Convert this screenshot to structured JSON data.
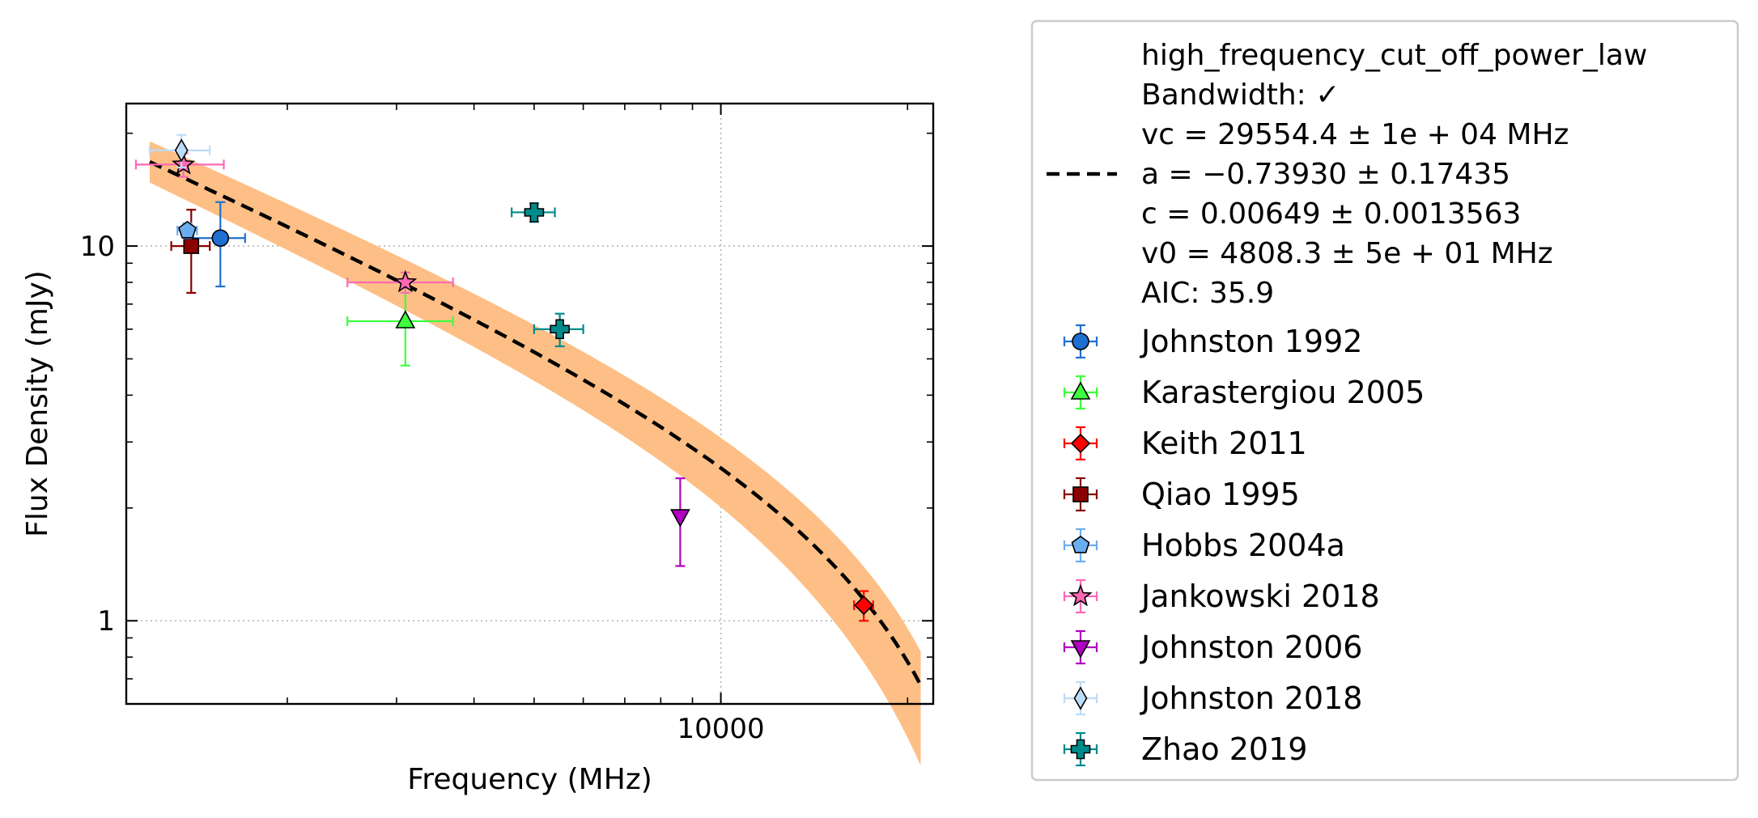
{
  "chart_data": {
    "type": "scatter",
    "title": "",
    "xlabel": "Frequency (MHz)",
    "ylabel": "Flux Density (mJy)",
    "x_scale": "log",
    "y_scale": "log",
    "xlim": [
      1100,
      22000
    ],
    "ylim": [
      0.6,
      24
    ],
    "x_tick_labels": [
      "10000"
    ],
    "y_tick_labels": [
      "1",
      "10"
    ],
    "grid": true,
    "legend_position": "outside-right",
    "fit": {
      "label_lines": [
        "high_frequency_cut_off_power_law",
        "Bandwidth: ✓",
        "vc = 29554.4 ± 1e + 04 MHz",
        "a = −0.73930 ± 0.17435",
        "c = 0.00649 ± 0.0013563",
        "v0 = 4808.3 ± 5e + 01 MHz",
        "AIC: 35.9"
      ],
      "vc": 29554.4,
      "a": -0.7393,
      "c": 0.00649,
      "v0": 4808.3,
      "x_range": [
        1200,
        21000
      ],
      "color": "#000000",
      "band_color": "#fdbf85"
    },
    "series": [
      {
        "name": "Johnston 1992",
        "color": "#1f6fd1",
        "marker": "circle",
        "points": [
          {
            "x": 1560,
            "y": 10.5,
            "xerr": 150,
            "yerr_lo": 2.7,
            "yerr_hi": 2.6
          }
        ]
      },
      {
        "name": "Karastergiou 2005",
        "color": "#3dff3d",
        "marker": "triangle-up",
        "points": [
          {
            "x": 3100,
            "y": 6.3,
            "xerr": 600,
            "yerr_lo": 1.5,
            "yerr_hi": 1.2
          }
        ]
      },
      {
        "name": "Keith 2011",
        "color": "#ff0000",
        "marker": "diamond",
        "points": [
          {
            "x": 17000,
            "y": 1.1,
            "xerr": 600,
            "yerr_lo": 0.1,
            "yerr_hi": 0.1
          }
        ]
      },
      {
        "name": "Qiao 1995",
        "color": "#8b0000",
        "marker": "square",
        "points": [
          {
            "x": 1400,
            "y": 10.0,
            "xerr": 100,
            "yerr_lo": 2.5,
            "yerr_hi": 2.5
          }
        ]
      },
      {
        "name": "Hobbs 2004a",
        "color": "#6aaef0",
        "marker": "pentagon",
        "points": [
          {
            "x": 1380,
            "y": 11.0,
            "xerr": 50,
            "yerr_lo": 0.5,
            "yerr_hi": 0.5
          }
        ]
      },
      {
        "name": "Jankowski 2018",
        "color": "#ff69b4",
        "marker": "star",
        "points": [
          {
            "x": 1360,
            "y": 16.5,
            "xerr": 220,
            "yerr_lo": 1.2,
            "yerr_hi": 1.2
          },
          {
            "x": 3100,
            "y": 8.0,
            "xerr": 600,
            "yerr_lo": 0.5,
            "yerr_hi": 0.5
          }
        ]
      },
      {
        "name": "Johnston 2006",
        "color": "#b000c0",
        "marker": "triangle-down",
        "points": [
          {
            "x": 8600,
            "y": 1.9,
            "xerr": 100,
            "yerr_lo": 0.5,
            "yerr_hi": 0.5
          }
        ]
      },
      {
        "name": "Johnston 2018",
        "color": "#bcdcf7",
        "marker": "thin-diamond",
        "points": [
          {
            "x": 1350,
            "y": 18.0,
            "xerr": 150,
            "yerr_lo": 1.8,
            "yerr_hi": 1.8
          }
        ]
      },
      {
        "name": "Zhao 2019",
        "color": "#008b8b",
        "marker": "plus",
        "points": [
          {
            "x": 5000,
            "y": 12.3,
            "xerr": 400,
            "yerr_lo": 0.7,
            "yerr_hi": 0.7
          },
          {
            "x": 5500,
            "y": 6.0,
            "xerr": 500,
            "yerr_lo": 0.6,
            "yerr_hi": 0.6
          }
        ]
      }
    ]
  }
}
